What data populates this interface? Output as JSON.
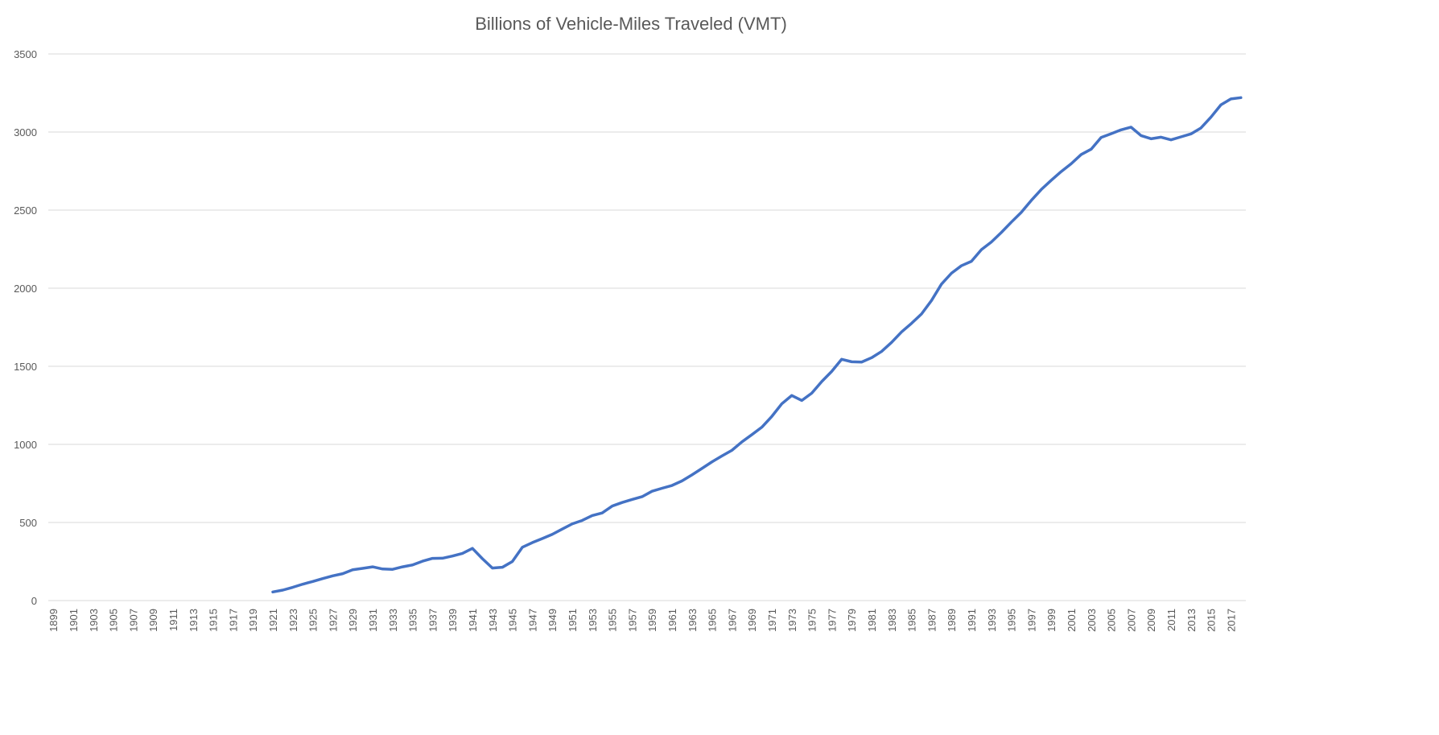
{
  "chart_data": {
    "type": "line",
    "title": "Billions of Vehicle-Miles Traveled (VMT)",
    "xlabel": "",
    "ylabel": "",
    "ylim": [
      0,
      3500
    ],
    "yticks": [
      0,
      500,
      1000,
      1500,
      2000,
      2500,
      3000,
      3500
    ],
    "x_tick_labels": [
      "1899",
      "1901",
      "1903",
      "1905",
      "1907",
      "1909",
      "1911",
      "1913",
      "1915",
      "1917",
      "1919",
      "1921",
      "1923",
      "1925",
      "1927",
      "1929",
      "1931",
      "1933",
      "1935",
      "1937",
      "1939",
      "1941",
      "1943",
      "1945",
      "1947",
      "1949",
      "1951",
      "1953",
      "1955",
      "1957",
      "1959",
      "1961",
      "1963",
      "1965",
      "1967",
      "1969",
      "1971",
      "1973",
      "1975",
      "1977",
      "1979",
      "1981",
      "1983",
      "1985",
      "1987",
      "1989",
      "1991",
      "1993",
      "1995",
      "1997",
      "1999",
      "2001",
      "2003",
      "2005",
      "2007",
      "2009",
      "2011",
      "2013",
      "2015",
      "2017"
    ],
    "xlim": [
      1899,
      2018
    ],
    "grid": "horizontal",
    "legend": "none",
    "line_color": "#4472c4",
    "series": [
      {
        "x": [
          1921,
          1922,
          1923,
          1924,
          1925,
          1926,
          1927,
          1928,
          1929,
          1930,
          1931,
          1932,
          1933,
          1934,
          1935,
          1936,
          1937,
          1938,
          1939,
          1940,
          1941,
          1942,
          1943,
          1944,
          1945,
          1946,
          1947,
          1948,
          1949,
          1950,
          1951,
          1952,
          1953,
          1954,
          1955,
          1956,
          1957,
          1958,
          1959,
          1960,
          1961,
          1962,
          1963,
          1964,
          1965,
          1966,
          1967,
          1968,
          1969,
          1970,
          1971,
          1972,
          1973,
          1974,
          1975,
          1976,
          1977,
          1978,
          1979,
          1980,
          1981,
          1982,
          1983,
          1984,
          1985,
          1986,
          1987,
          1988,
          1989,
          1990,
          1991,
          1992,
          1993,
          1994,
          1995,
          1996,
          1997,
          1998,
          1999,
          2000,
          2001,
          2002,
          2003,
          2004,
          2005,
          2006,
          2007,
          2008,
          2009,
          2010,
          2011,
          2012,
          2013,
          2014,
          2015,
          2016,
          2017,
          2018
        ],
        "values": [
          55,
          67,
          85,
          105,
          122,
          141,
          158,
          172,
          197,
          206,
          216,
          202,
          200,
          216,
          228,
          252,
          270,
          271,
          285,
          302,
          334,
          268,
          208,
          213,
          250,
          341,
          371,
          397,
          424,
          458,
          491,
          513,
          544,
          561,
          605,
          628,
          647,
          665,
          700,
          719,
          737,
          766,
          805,
          846,
          888,
          926,
          962,
          1016,
          1062,
          1110,
          1179,
          1260,
          1313,
          1281,
          1328,
          1402,
          1467,
          1545,
          1529,
          1527,
          1555,
          1595,
          1653,
          1720,
          1775,
          1835,
          1921,
          2026,
          2096,
          2144,
          2172,
          2247,
          2296,
          2357,
          2423,
          2486,
          2562,
          2632,
          2691,
          2747,
          2797,
          2856,
          2890,
          2965,
          2989,
          3014,
          3031,
          2977,
          2957,
          2967,
          2950,
          2969,
          2988,
          3026,
          3095,
          3174,
          3212,
          3220
        ]
      }
    ]
  }
}
